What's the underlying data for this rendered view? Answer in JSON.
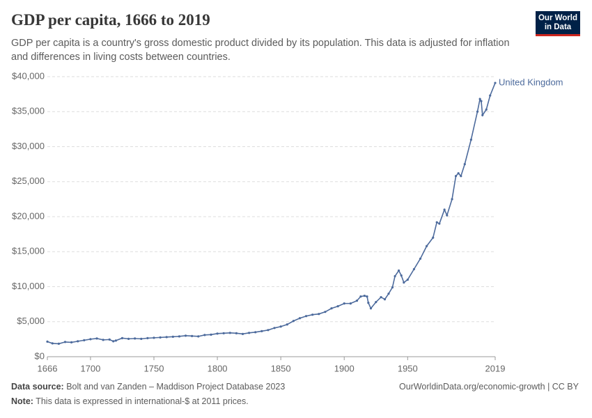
{
  "chart_data": {
    "type": "line",
    "title": "GDP per capita, 1666 to 2019",
    "subtitle": "GDP per capita is a country's gross domestic product divided by its population. This data is adjusted for inflation and differences in living costs between countries.",
    "x": [
      1666,
      1670,
      1675,
      1680,
      1685,
      1690,
      1695,
      1700,
      1705,
      1710,
      1715,
      1718,
      1720,
      1725,
      1730,
      1735,
      1740,
      1745,
      1750,
      1755,
      1760,
      1765,
      1770,
      1775,
      1780,
      1785,
      1790,
      1795,
      1800,
      1805,
      1810,
      1815,
      1820,
      1825,
      1830,
      1835,
      1840,
      1845,
      1850,
      1855,
      1860,
      1865,
      1870,
      1875,
      1880,
      1885,
      1890,
      1895,
      1900,
      1905,
      1910,
      1913,
      1916,
      1918,
      1919,
      1921,
      1925,
      1929,
      1932,
      1935,
      1938,
      1940,
      1943,
      1945,
      1947,
      1950,
      1955,
      1960,
      1965,
      1970,
      1973,
      1975,
      1979,
      1981,
      1985,
      1988,
      1990,
      1992,
      1995,
      2000,
      2005,
      2007,
      2008,
      2009,
      2012,
      2015,
      2019
    ],
    "series": [
      {
        "name": "United Kingdom",
        "color": "#4c6a9c",
        "values": [
          2150,
          1900,
          1850,
          2100,
          2050,
          2200,
          2350,
          2500,
          2600,
          2400,
          2450,
          2200,
          2300,
          2650,
          2550,
          2600,
          2550,
          2650,
          2700,
          2750,
          2800,
          2850,
          2900,
          3000,
          2950,
          2900,
          3100,
          3150,
          3300,
          3350,
          3400,
          3350,
          3250,
          3400,
          3500,
          3650,
          3800,
          4100,
          4300,
          4600,
          5100,
          5500,
          5800,
          6000,
          6100,
          6400,
          6900,
          7200,
          7600,
          7600,
          8000,
          8600,
          8700,
          8600,
          7700,
          6900,
          7800,
          8500,
          8200,
          9000,
          9900,
          11500,
          12300,
          11600,
          10600,
          11000,
          12500,
          14000,
          15800,
          17000,
          19200,
          19000,
          21000,
          20200,
          22500,
          25800,
          26200,
          25800,
          27500,
          31000,
          35000,
          36800,
          36500,
          34500,
          35300,
          37300,
          39100
        ]
      }
    ],
    "xlim": [
      1666,
      2019
    ],
    "xticks": [
      1666,
      1700,
      1750,
      1800,
      1850,
      1900,
      1950,
      2019
    ],
    "ylim": [
      0,
      40000
    ],
    "yticks": [
      {
        "value": 0,
        "label": "$0"
      },
      {
        "value": 5000,
        "label": "$5,000"
      },
      {
        "value": 10000,
        "label": "$10,000"
      },
      {
        "value": 15000,
        "label": "$15,000"
      },
      {
        "value": 20000,
        "label": "$20,000"
      },
      {
        "value": 25000,
        "label": "$25,000"
      },
      {
        "value": 30000,
        "label": "$30,000"
      },
      {
        "value": 35000,
        "label": "$35,000"
      },
      {
        "value": 40000,
        "label": "$40,000"
      }
    ],
    "grid": true
  },
  "logo": {
    "line1": "Our World",
    "line2": "in Data"
  },
  "footer": {
    "source_label": "Data source:",
    "source": "Bolt and van Zanden – Maddison Project Database 2023",
    "link": "OurWorldinData.org/economic-growth | CC BY",
    "note_label": "Note:",
    "note": "This data is expressed in international-$ at 2011 prices."
  }
}
